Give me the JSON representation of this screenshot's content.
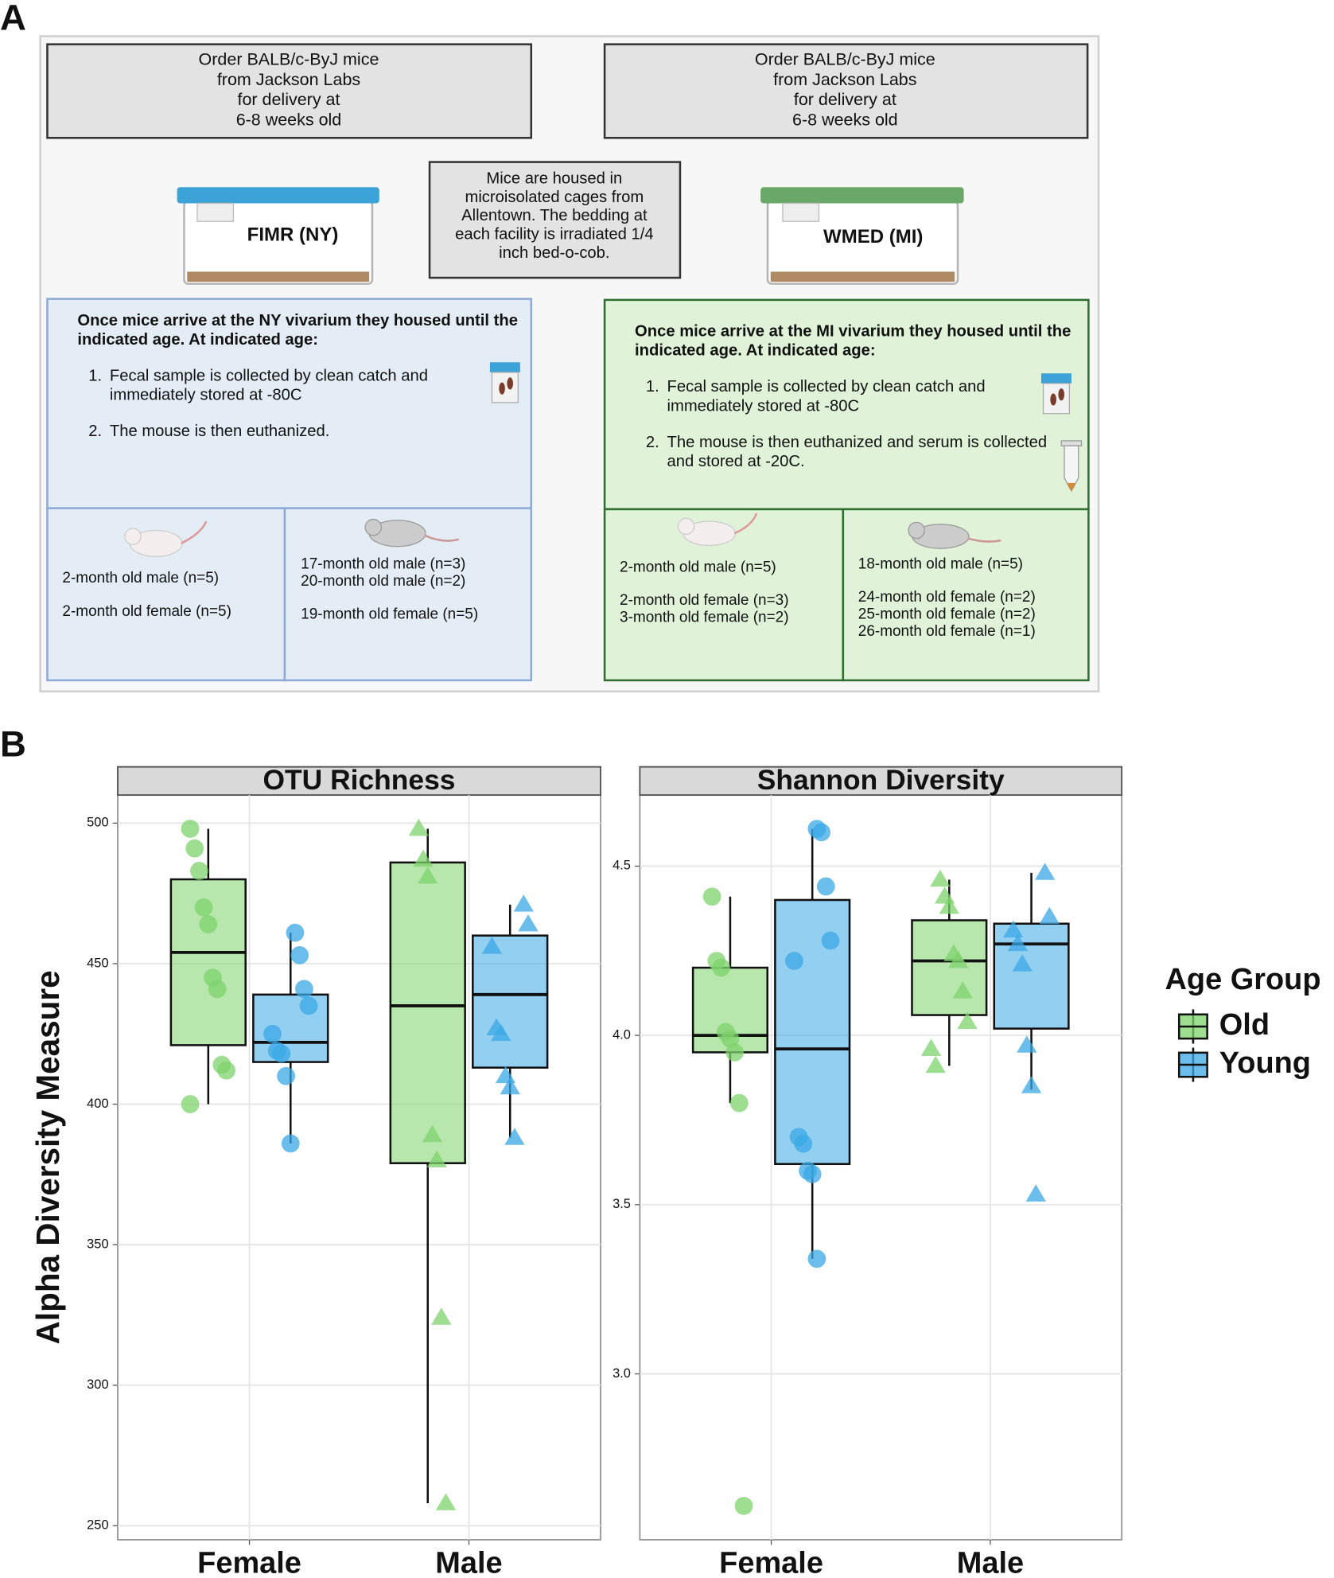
{
  "figure": {
    "label_a": "A",
    "label_b": "B"
  },
  "panel_a": {
    "ny": {
      "order": [
        "Order BALB/c-ByJ mice",
        "from Jackson Labs",
        "for delivery at",
        "6-8 weeks old"
      ],
      "cage": "FIMR (NY)",
      "intro": [
        "Once mice arrive at the NY vivarium they housed until the",
        "indicated age. At indicated age:"
      ],
      "steps": [
        {
          "number": "1.",
          "lines": [
            "Fecal sample is collected by clean catch and",
            "immediately stored at -80C"
          ]
        },
        {
          "number": "2.",
          "lines": [
            "The mouse is then euthanized."
          ]
        }
      ],
      "young": [
        "2-month old male (n=5)",
        "2-month old female (n=5)"
      ],
      "old": [
        "17-month old male (n=3)",
        "20-month old male (n=2)",
        "19-month old female (n=5)"
      ]
    },
    "housing": [
      "Mice are housed in",
      "microisolated cages from",
      "Allentown. The bedding at",
      "each facility is irradiated 1/4",
      "inch bed-o-cob."
    ],
    "mi": {
      "order": [
        "Order BALB/c-ByJ mice",
        "from Jackson Labs",
        "for delivery at",
        "6-8 weeks old"
      ],
      "cage": "WMED (MI)",
      "intro": [
        "Once mice arrive at the MI vivarium they housed until the",
        "indicated age. At indicated age:"
      ],
      "steps": [
        {
          "number": "1.",
          "lines": [
            "Fecal sample is collected by clean catch and",
            "immediately stored at -80C"
          ]
        },
        {
          "number": "2.",
          "lines": [
            "The mouse is then euthanized and serum is collected",
            "and stored at -20C."
          ]
        }
      ],
      "young": [
        "2-month old male (n=5)",
        "2-month old female (n=3)",
        "3-month old female (n=2)"
      ],
      "old": [
        "18-month old male (n=5)",
        "24-month old female (n=2)",
        "25-month old female (n=2)",
        "26-month old female (n=1)"
      ]
    }
  },
  "chart_data": [
    {
      "type": "box",
      "title": "OTU Richness",
      "y_label": "Alpha Diversity Measure",
      "categories": [
        "Female",
        "Male"
      ],
      "markers": [
        "circle",
        "triangle"
      ],
      "ylim": [
        245,
        510
      ],
      "yticks": [
        250,
        300,
        350,
        400,
        450,
        500
      ],
      "grid": true,
      "series": [
        {
          "name": "Old",
          "color": "#7dd36b",
          "boxes": [
            {
              "whisker_low": 400,
              "q1": 421,
              "median": 454,
              "q3": 480,
              "whisker_high": 498,
              "points": [
                498,
                491,
                483,
                470,
                464,
                445,
                441,
                414,
                412,
                400
              ]
            },
            {
              "whisker_low": 258,
              "q1": 379,
              "median": 435,
              "q3": 486,
              "whisker_high": 498,
              "points": [
                498,
                487,
                481,
                389,
                380,
                324,
                258
              ]
            }
          ]
        },
        {
          "name": "Young",
          "color": "#3aa8e6",
          "boxes": [
            {
              "whisker_low": 386,
              "q1": 415,
              "median": 422,
              "q3": 439,
              "whisker_high": 461,
              "points": [
                461,
                453,
                441,
                435,
                425,
                419,
                418,
                410,
                386
              ]
            },
            {
              "whisker_low": 388,
              "q1": 413,
              "median": 439,
              "q3": 460,
              "whisker_high": 471,
              "points": [
                471,
                464,
                456,
                427,
                425,
                410,
                406,
                388
              ]
            }
          ]
        }
      ]
    },
    {
      "type": "box",
      "title": "Shannon Diversity",
      "legend_title": "Age Group",
      "categories": [
        "Female",
        "Male"
      ],
      "markers": [
        "circle",
        "triangle"
      ],
      "ylim": [
        2.51,
        4.71
      ],
      "yticks": [
        {
          "value": 3,
          "label": "3.0"
        },
        3.5,
        {
          "value": 4,
          "label": "4.0"
        },
        4.5
      ],
      "grid": true,
      "series": [
        {
          "name": "Old",
          "color": "#7dd36b",
          "boxes": [
            {
              "whisker_low": 3.8,
              "q1": 3.95,
              "median": 4.0,
              "q3": 4.2,
              "whisker_high": 4.41,
              "points": [
                4.41,
                4.22,
                4.2,
                4.01,
                3.99,
                3.95,
                3.8,
                2.61
              ]
            },
            {
              "whisker_low": 3.91,
              "q1": 4.06,
              "median": 4.22,
              "q3": 4.34,
              "whisker_high": 4.46,
              "points": [
                4.46,
                4.41,
                4.38,
                4.24,
                4.22,
                4.13,
                4.04,
                3.96,
                3.91
              ]
            }
          ]
        },
        {
          "name": "Young",
          "color": "#3aa8e6",
          "boxes": [
            {
              "whisker_low": 3.34,
              "q1": 3.62,
              "median": 3.96,
              "q3": 4.4,
              "whisker_high": 4.61,
              "points": [
                4.61,
                4.6,
                4.44,
                4.28,
                4.22,
                3.7,
                3.68,
                3.6,
                3.59,
                3.34
              ]
            },
            {
              "whisker_low": 3.84,
              "q1": 4.02,
              "median": 4.27,
              "q3": 4.33,
              "whisker_high": 4.48,
              "points": [
                4.48,
                4.35,
                4.31,
                4.27,
                4.21,
                3.97,
                3.85,
                3.53
              ]
            }
          ]
        }
      ]
    }
  ]
}
